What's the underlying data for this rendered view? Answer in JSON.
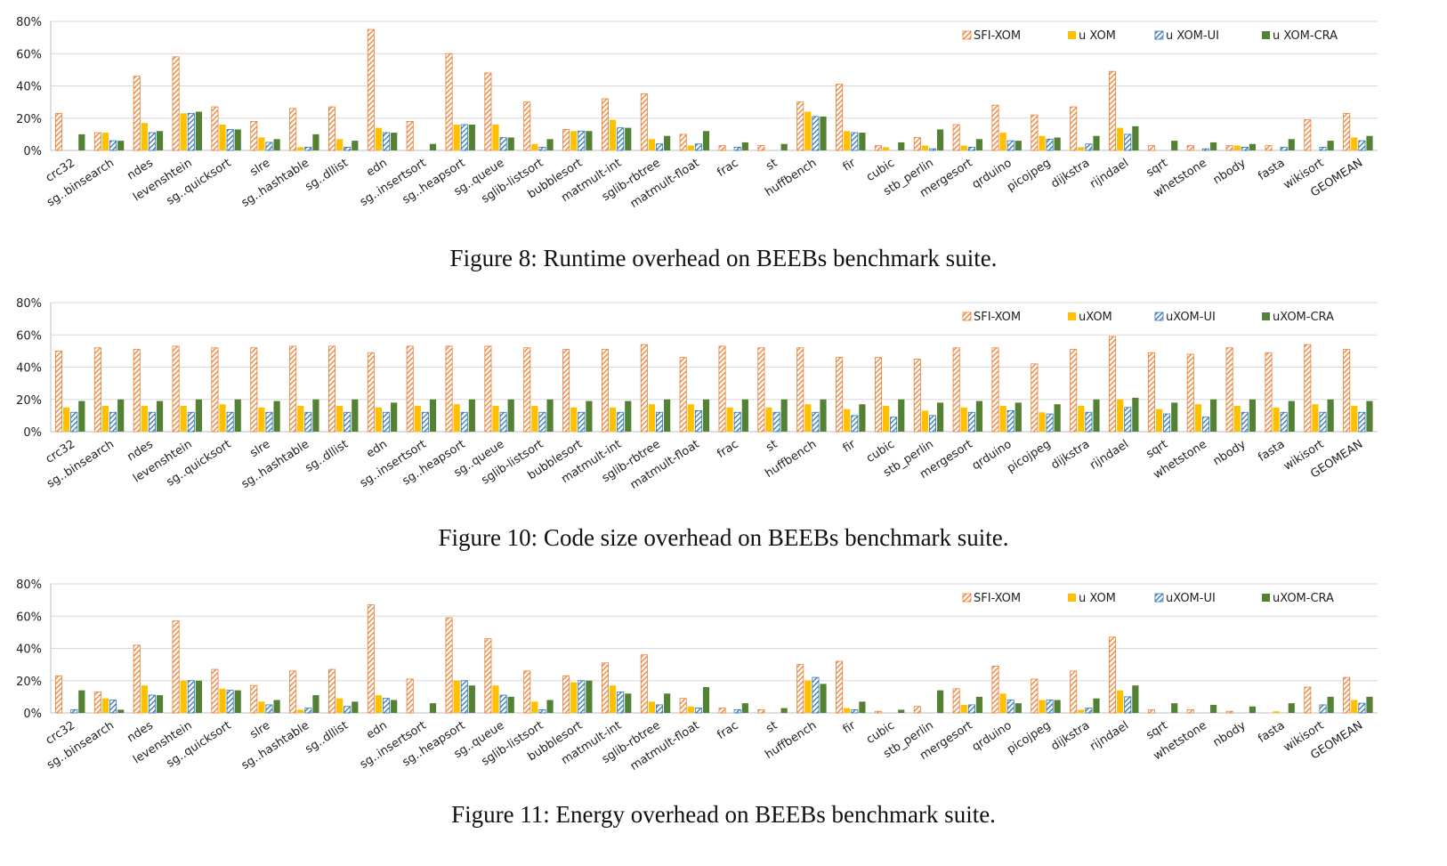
{
  "colors": {
    "SFI-XOM": "#ED7D31",
    "uXOM": "#FFC000",
    "uXOM-UI": "#2E75B6",
    "uXOM-CRA": "#548235",
    "axis": "#bfbfbf",
    "grid": "#d9d9d9"
  },
  "categories": [
    "crc32",
    "sg..binsearch",
    "ndes",
    "levenshtein",
    "sg..quicksort",
    "slre",
    "sg..hashtable",
    "sg..dllist",
    "edn",
    "sg..insertsort",
    "sg..heapsort",
    "sg..queue",
    "sglib-listsort",
    "bubblesort",
    "matmult-int",
    "sglib-rbtree",
    "matmult-float",
    "frac",
    "st",
    "huffbench",
    "fir",
    "cubic",
    "stb_perlin",
    "mergesort",
    "qrduino",
    "picojpeg",
    "dijkstra",
    "rijndael",
    "sqrt",
    "whetstone",
    "nbody",
    "fasta",
    "wikisort",
    "GEOMEAN"
  ],
  "chart_data": [
    {
      "type": "bar",
      "caption": "Figure 8: Runtime overhead on BEEBs benchmark suite.",
      "ylim": [
        0,
        80
      ],
      "yticks": [
        "0%",
        "20%",
        "40%",
        "60%",
        "80%"
      ],
      "legend": [
        "SFI-XOM",
        "u XOM",
        "u XOM-UI",
        "u XOM-CRA"
      ],
      "series": [
        {
          "name": "SFI-XOM",
          "values": [
            23,
            11,
            46,
            58,
            27,
            18,
            26,
            27,
            75,
            18,
            60,
            48,
            30,
            13,
            32,
            35,
            10,
            3,
            3,
            30,
            41,
            3,
            8,
            16,
            28,
            22,
            27,
            49,
            3,
            3,
            3,
            3,
            19,
            23
          ]
        },
        {
          "name": "uXOM",
          "values": [
            0,
            11,
            17,
            23,
            16,
            8,
            2,
            7,
            14,
            0,
            16,
            16,
            4,
            12,
            19,
            7,
            3,
            0,
            0,
            24,
            12,
            2,
            3,
            3,
            11,
            9,
            2,
            14,
            0,
            0,
            3,
            0,
            0,
            8
          ]
        },
        {
          "name": "uXOM-UI",
          "values": [
            0,
            6,
            11,
            23,
            13,
            5,
            2,
            2,
            11,
            0,
            16,
            8,
            2,
            12,
            14,
            4,
            4,
            2,
            0,
            21,
            11,
            0,
            1,
            2,
            6,
            7,
            4,
            10,
            0,
            1,
            2,
            2,
            2,
            6
          ]
        },
        {
          "name": "uXOM-CRA",
          "values": [
            10,
            6,
            12,
            24,
            13,
            7,
            10,
            6,
            11,
            4,
            16,
            8,
            7,
            12,
            14,
            9,
            12,
            5,
            4,
            21,
            11,
            5,
            13,
            7,
            6,
            8,
            9,
            15,
            6,
            5,
            4,
            7,
            6,
            9
          ]
        }
      ]
    },
    {
      "type": "bar",
      "caption": "Figure 10: Code size overhead on BEEBs benchmark suite.",
      "ylim": [
        0,
        80
      ],
      "yticks": [
        "0%",
        "20%",
        "40%",
        "60%",
        "80%"
      ],
      "legend": [
        "SFI-XOM",
        "uXOM",
        "uXOM-UI",
        "uXOM-CRA"
      ],
      "series": [
        {
          "name": "SFI-XOM",
          "values": [
            50,
            52,
            51,
            53,
            52,
            52,
            53,
            53,
            49,
            53,
            53,
            53,
            52,
            51,
            51,
            54,
            46,
            53,
            52,
            52,
            46,
            46,
            45,
            52,
            52,
            42,
            51,
            59,
            49,
            48,
            52,
            49,
            54,
            51
          ]
        },
        {
          "name": "uXOM",
          "values": [
            15,
            16,
            16,
            16,
            17,
            15,
            16,
            16,
            15,
            16,
            17,
            16,
            16,
            15,
            15,
            17,
            17,
            15,
            15,
            17,
            14,
            16,
            13,
            15,
            16,
            12,
            16,
            20,
            14,
            17,
            16,
            15,
            17,
            16
          ]
        },
        {
          "name": "uXOM-UI",
          "values": [
            12,
            12,
            12,
            12,
            12,
            12,
            12,
            12,
            12,
            12,
            12,
            12,
            12,
            12,
            12,
            12,
            13,
            12,
            12,
            12,
            10,
            9,
            10,
            12,
            13,
            11,
            12,
            15,
            11,
            9,
            12,
            12,
            12,
            12
          ]
        },
        {
          "name": "uXOM-CRA",
          "values": [
            19,
            20,
            19,
            20,
            20,
            19,
            20,
            20,
            18,
            20,
            20,
            20,
            20,
            19,
            19,
            20,
            20,
            20,
            20,
            20,
            17,
            20,
            18,
            19,
            18,
            17,
            20,
            21,
            18,
            20,
            20,
            19,
            20,
            19
          ]
        }
      ]
    },
    {
      "type": "bar",
      "caption": "Figure 11: Energy overhead on BEEBs benchmark suite.",
      "ylim": [
        0,
        80
      ],
      "yticks": [
        "0%",
        "20%",
        "40%",
        "60%",
        "80%"
      ],
      "legend": [
        "SFI-XOM",
        "u XOM",
        "uXOM-UI",
        "uXOM-CRA"
      ],
      "series": [
        {
          "name": "SFI-XOM",
          "values": [
            23,
            13,
            42,
            57,
            27,
            17,
            26,
            27,
            67,
            21,
            59,
            46,
            26,
            23,
            31,
            36,
            9,
            3,
            2,
            30,
            32,
            1,
            4,
            15,
            29,
            21,
            26,
            47,
            2,
            2,
            1,
            0,
            16,
            22
          ]
        },
        {
          "name": "uXOM",
          "values": [
            0,
            9,
            17,
            20,
            15,
            7,
            2,
            9,
            11,
            0,
            20,
            17,
            7,
            19,
            17,
            7,
            4,
            0,
            0,
            20,
            3,
            0,
            0,
            5,
            12,
            8,
            2,
            14,
            0,
            0,
            0,
            1,
            0,
            8
          ]
        },
        {
          "name": "uXOM-UI",
          "values": [
            2,
            8,
            11,
            20,
            14,
            5,
            3,
            4,
            9,
            0,
            20,
            11,
            2,
            20,
            13,
            5,
            3,
            2,
            0,
            22,
            2,
            0,
            0,
            5,
            8,
            8,
            3,
            10,
            0,
            0,
            0,
            0,
            5,
            6
          ]
        },
        {
          "name": "uXOM-CRA",
          "values": [
            14,
            2,
            11,
            20,
            14,
            8,
            11,
            7,
            8,
            6,
            17,
            10,
            8,
            20,
            12,
            12,
            16,
            6,
            3,
            18,
            7,
            2,
            14,
            10,
            6,
            8,
            9,
            17,
            6,
            5,
            4,
            6,
            10,
            10
          ]
        }
      ]
    }
  ]
}
